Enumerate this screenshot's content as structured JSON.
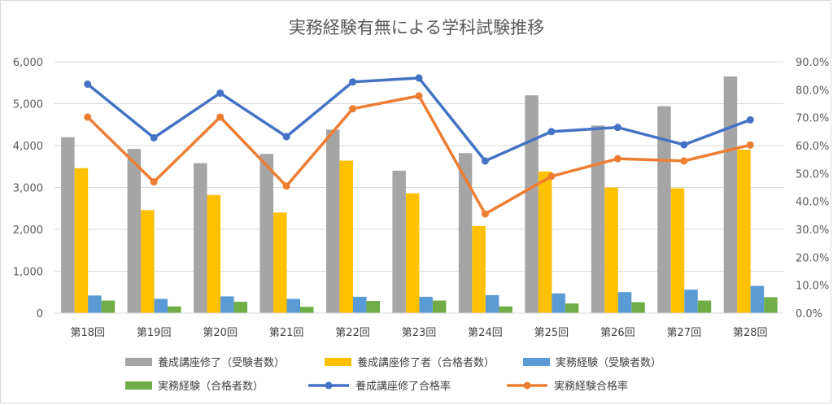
{
  "chart_data": {
    "type": "bar",
    "title": "実務経験有無による学科試験推移",
    "categories": [
      "第18回",
      "第19回",
      "第20回",
      "第21回",
      "第22回",
      "第23回",
      "第24回",
      "第25回",
      "第26回",
      "第27回",
      "第28回"
    ],
    "y_left": {
      "min": 0,
      "max": 6000,
      "ticks": [
        "0",
        "1,000",
        "2,000",
        "3,000",
        "4,000",
        "5,000",
        "6,000"
      ]
    },
    "y_right": {
      "min": 0,
      "max": 90,
      "ticks": [
        "0.0%",
        "10.0%",
        "20.0%",
        "30.0%",
        "40.0%",
        "50.0%",
        "60.0%",
        "70.0%",
        "80.0%",
        "90.0%"
      ]
    },
    "bar_series": [
      {
        "name": "養成講座修了（受験者数）",
        "color": "#a5a5a5",
        "values": [
          4200,
          3920,
          3580,
          3800,
          4380,
          3400,
          3820,
          5200,
          4480,
          4940,
          5650
        ]
      },
      {
        "name": "養成講座修了者（合格者数）",
        "color": "#ffc000",
        "values": [
          3460,
          2460,
          2820,
          2400,
          3640,
          2860,
          2080,
          3380,
          3000,
          2980,
          3900
        ]
      },
      {
        "name": "実務経験（受験者数）",
        "color": "#5b9bd5",
        "values": [
          420,
          340,
          400,
          340,
          390,
          390,
          430,
          470,
          500,
          560,
          650
        ]
      },
      {
        "name": "実務経験（合格者数）",
        "color": "#70ad47",
        "values": [
          300,
          160,
          270,
          150,
          290,
          300,
          160,
          230,
          260,
          300,
          380
        ]
      }
    ],
    "line_series": [
      {
        "name": "養成講座修了合格率",
        "color": "#4472c4",
        "values": [
          82.0,
          62.8,
          78.8,
          63.2,
          82.8,
          84.2,
          54.5,
          65.0,
          66.5,
          60.3,
          69.2
        ]
      },
      {
        "name": "実務経験合格率",
        "color": "#ed7d31",
        "values": [
          70.2,
          47.0,
          70.2,
          45.5,
          73.2,
          77.8,
          35.5,
          49.0,
          55.3,
          54.5,
          60.2
        ]
      }
    ],
    "legend_position": "bottom"
  }
}
